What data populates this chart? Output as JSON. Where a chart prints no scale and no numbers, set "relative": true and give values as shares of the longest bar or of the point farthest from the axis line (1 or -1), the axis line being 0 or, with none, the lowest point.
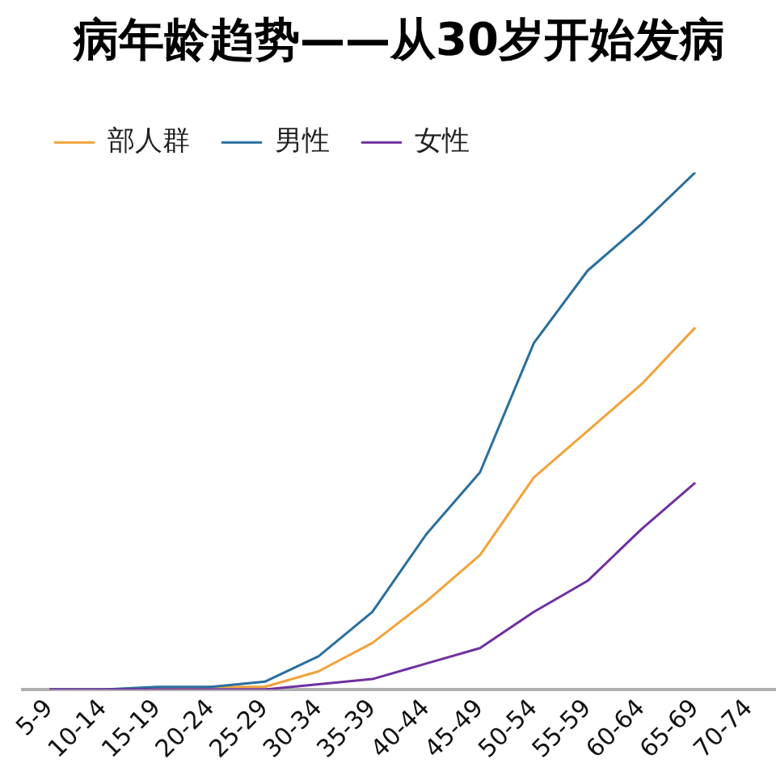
{
  "chart_data": {
    "type": "line",
    "title": "病年龄趋势——从30岁开始发病",
    "relative": true,
    "grid": false,
    "legend": "top",
    "marker": "none",
    "line_style": "solid",
    "categories": [
      "5-9",
      "10-14",
      "15-19",
      "20-24",
      "25-29",
      "30-34",
      "35-39",
      "40-44",
      "45-49",
      "50-54",
      "55-59",
      "60-64",
      "65-69",
      "70-74"
    ],
    "series": [
      {
        "name": "部人群",
        "color": "#f2a23a",
        "values": [
          null,
          null,
          0,
          0.005,
          0.005,
          0.035,
          0.09,
          0.17,
          0.26,
          0.41,
          0.5,
          0.59,
          0.7,
          null
        ]
      },
      {
        "name": "男性",
        "color": "#2a6f9e",
        "values": [
          0,
          0,
          0.005,
          0.005,
          0.015,
          0.064,
          0.15,
          0.3,
          0.42,
          0.67,
          0.81,
          0.9,
          1,
          null
        ]
      },
      {
        "name": "女性",
        "color": "#7030a0",
        "values": [
          0,
          0,
          0,
          0,
          0,
          0.01,
          0.02,
          0.05,
          0.08,
          0.15,
          0.21,
          0.31,
          0.4,
          null
        ]
      }
    ]
  }
}
